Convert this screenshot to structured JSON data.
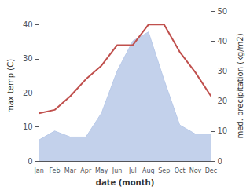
{
  "chart_data": {
    "type": "line",
    "xlabel": "date (month)",
    "ylabel": "max temp (C)",
    "y2label": "med. precipitation (kg/m2)",
    "categories": [
      "Jan",
      "Feb",
      "Mar",
      "Apr",
      "May",
      "Jun",
      "Jul",
      "Aug",
      "Sep",
      "Oct",
      "Nov",
      "Dec"
    ],
    "series": [
      {
        "type": "area",
        "color": "#b8c9e8",
        "axis": "y2",
        "values": [
          7,
          10,
          8,
          8,
          16,
          30,
          40,
          43,
          27,
          12,
          9,
          9
        ]
      },
      {
        "type": "line",
        "color": "#c0504d",
        "values": [
          14,
          15,
          19,
          24,
          28,
          34,
          34,
          40,
          40,
          32,
          26,
          19
        ]
      }
    ],
    "ylim": [
      0,
      44
    ],
    "yticks": [
      0,
      10,
      20,
      30,
      40
    ],
    "y2lim": [
      0,
      50
    ],
    "y2ticks": [
      0,
      10,
      20,
      30,
      40,
      50
    ],
    "grid": false
  }
}
